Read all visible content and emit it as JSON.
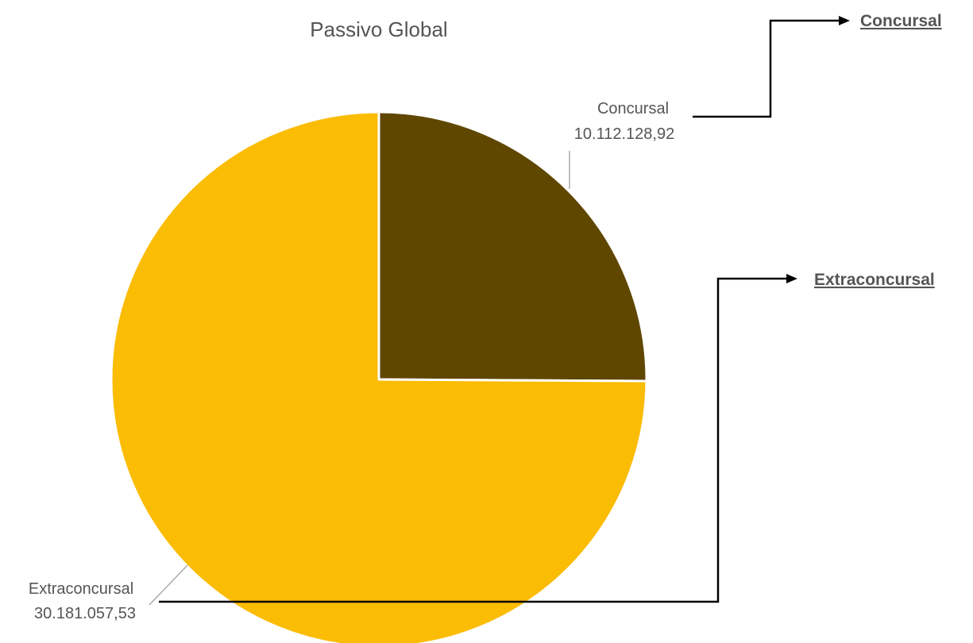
{
  "chart_data": {
    "type": "pie",
    "title": "Passivo Global",
    "slices": [
      {
        "label": "Concursal",
        "value": 10112128.92,
        "value_text": "10.112.128,92",
        "color": "#5f4700"
      },
      {
        "label": "Extraconcursal",
        "value": 30181057.53,
        "value_text": "30.181.057,53",
        "color": "#fbbc04"
      }
    ]
  },
  "annotations": {
    "concursal_link": "Concursal",
    "extraconcursal_link": "Extraconcursal"
  },
  "colors": {
    "background": "#ffffff",
    "slice_border": "#ffffff",
    "arrow": "#000000",
    "text": "#555555"
  }
}
